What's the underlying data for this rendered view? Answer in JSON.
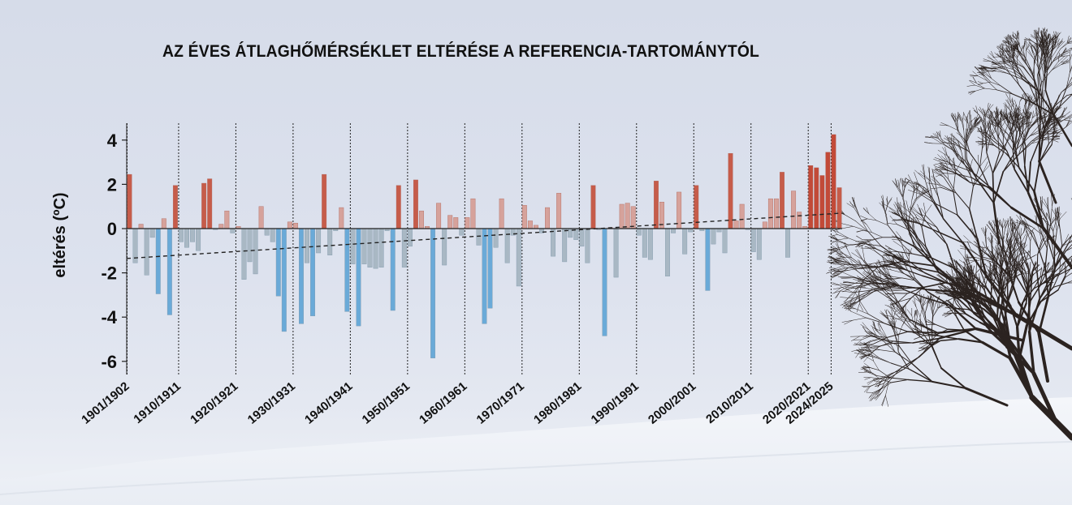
{
  "chart_data": {
    "type": "bar",
    "title": "AZ ÉVES ÁTLAGHŐMÉRSÉKLET ELTÉRÉSE A REFERENCIA-TARTOMÁNYTÓL",
    "ylabel": "eltérés (ºC)",
    "xlabel": "",
    "ylim": [
      -6.5,
      4.8
    ],
    "y_ticks": [
      "4",
      "2",
      "0",
      "-2",
      "-4",
      "-6"
    ],
    "y_tick_values": [
      4,
      2,
      0,
      -2,
      -4,
      -6
    ],
    "x_tick_labels": [
      "1901/1902",
      "1910/1911",
      "1920/1921",
      "1930/1931",
      "1940/1941",
      "1950/1951",
      "1960/1961",
      "1970/1971",
      "1980/1981",
      "1990/1991",
      "2000/2001",
      "2010/2011",
      "2020/2021",
      "2024/2025"
    ],
    "x_tick_indices": [
      0,
      9,
      19,
      29,
      39,
      49,
      59,
      69,
      79,
      89,
      99,
      109,
      119,
      123
    ],
    "grid": "vertical dotted lines at decade marks",
    "legend": "none",
    "colors": {
      "warm_strong": "#c65c4a",
      "warm_light": "#d6a29b",
      "cold_strong": "#6aaad8",
      "cold_light": "#a9b8c4",
      "trend": "#222222"
    },
    "trend": {
      "start": -1.35,
      "end": 0.7
    },
    "values": [
      2.45,
      -1.55,
      0.2,
      -2.1,
      -0.4,
      -2.95,
      0.45,
      -3.9,
      1.95,
      -0.6,
      -0.85,
      -0.6,
      -1.0,
      2.05,
      2.25,
      -0.05,
      0.2,
      0.8,
      -0.2,
      0.1,
      -2.3,
      -1.5,
      -2.05,
      1.0,
      -0.3,
      -0.6,
      -3.05,
      -4.65,
      0.3,
      0.25,
      -4.3,
      -1.55,
      -3.95,
      -1.1,
      2.45,
      -1.2,
      -0.1,
      0.95,
      -3.75,
      -1.6,
      -4.4,
      -1.6,
      -1.75,
      -1.8,
      -1.75,
      -0.1,
      -3.7,
      1.95,
      -1.75,
      -0.8,
      2.2,
      0.8,
      0.1,
      -5.85,
      1.15,
      -1.65,
      0.6,
      0.5,
      -0.3,
      0.5,
      1.35,
      -0.75,
      -4.3,
      -3.6,
      -0.85,
      1.35,
      -1.55,
      -0.3,
      -2.6,
      1.05,
      0.35,
      0.15,
      -0.2,
      0.95,
      -1.25,
      1.6,
      -1.5,
      -0.4,
      -0.5,
      -0.8,
      -1.55,
      1.95,
      -0.05,
      -4.85,
      0.05,
      -2.2,
      1.1,
      1.15,
      1.0,
      -0.3,
      -1.3,
      -1.4,
      2.15,
      1.2,
      -2.15,
      -0.2,
      1.65,
      -1.15,
      -0.15,
      1.95,
      -0.1,
      -2.8,
      -0.7,
      -0.15,
      -1.1,
      3.4,
      0.35,
      1.1,
      -0.05,
      -1.05,
      -1.4,
      0.3,
      1.35,
      1.35,
      2.55,
      -1.3,
      1.7,
      0.75,
      0.1,
      2.85,
      2.75,
      2.4,
      3.45,
      4.25,
      1.85
    ]
  }
}
